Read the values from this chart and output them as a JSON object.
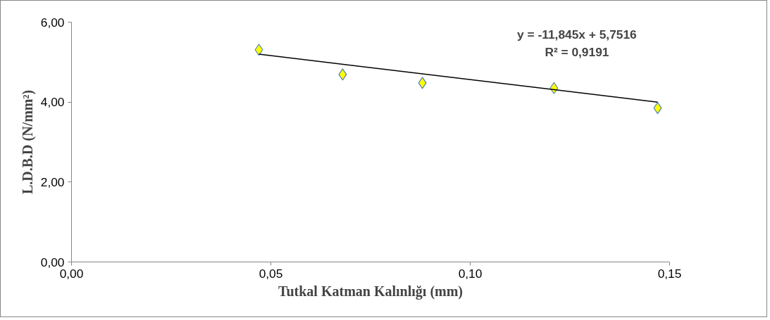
{
  "chart_data": {
    "type": "scatter",
    "xlabel": "Tutkal Katman Kalınlığı (mm)",
    "ylabel": "L.D.B.D (N/mm²)",
    "xlim": [
      0,
      0.15
    ],
    "ylim": [
      0,
      6
    ],
    "xticks": [
      {
        "value": 0,
        "label": "0,00"
      },
      {
        "value": 0.05,
        "label": "0,05"
      },
      {
        "value": 0.1,
        "label": "0,10"
      },
      {
        "value": 0.15,
        "label": "0,15"
      }
    ],
    "yticks": [
      {
        "value": 0,
        "label": "0,00"
      },
      {
        "value": 2,
        "label": "2,00"
      },
      {
        "value": 4,
        "label": "4,00"
      },
      {
        "value": 6,
        "label": "6,00"
      }
    ],
    "grid": false,
    "series": [
      {
        "marker": "diamond",
        "color": "#ffff00",
        "x": [
          0.047,
          0.068,
          0.088,
          0.121,
          0.147
        ],
        "values": [
          5.31,
          4.69,
          4.48,
          4.35,
          3.85
        ]
      },
      {
        "type": "line",
        "color": "#000000",
        "x": [
          0.047,
          0.147
        ],
        "values": [
          5.2,
          4.0
        ]
      }
    ],
    "annotations": [
      "y = -11,845x + 5,7516",
      "R² = 0,9191"
    ]
  }
}
